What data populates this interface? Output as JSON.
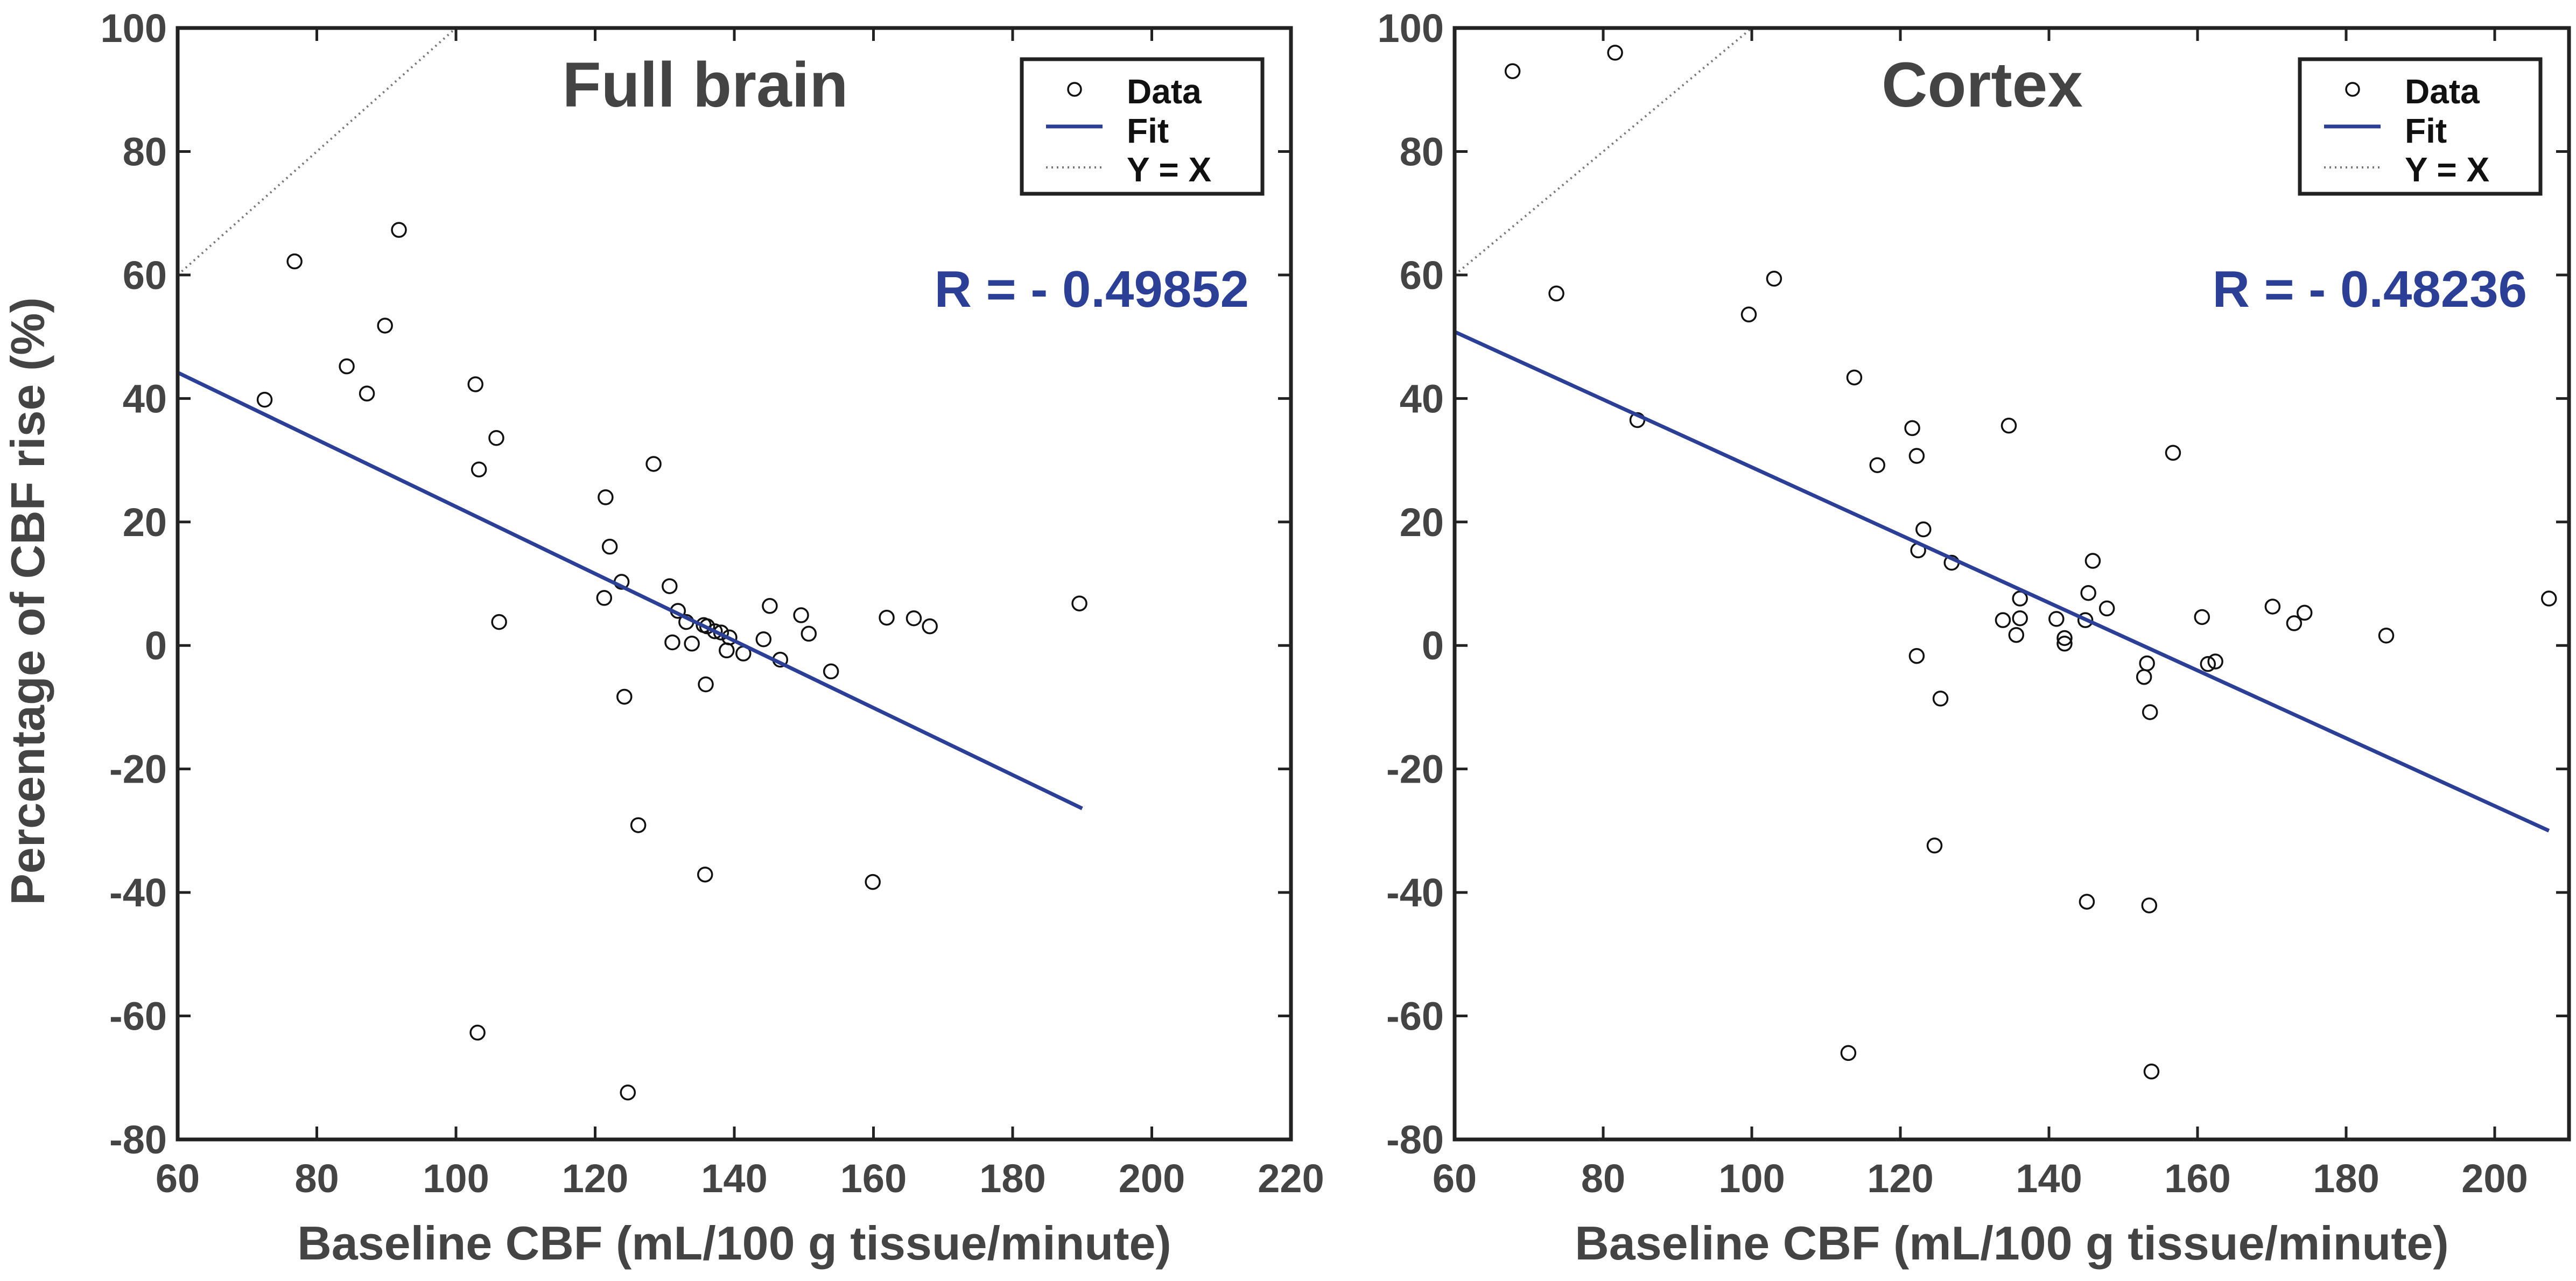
{
  "colors": {
    "fit": "#2b3f96",
    "r_text": "#2b3f96",
    "axes": "#222222",
    "text": "#444444",
    "marker": "#111111",
    "identity": "#777777"
  },
  "figure": {
    "ylabel": "Percentage of CBF rise (%)"
  },
  "chart_data": [
    {
      "type": "scatter",
      "title": "Full brain",
      "xlabel": "Baseline CBF (mL/100 g tissue/minute)",
      "ylabel": "Percentage of CBF rise (%)",
      "xlim": [
        60,
        220
      ],
      "ylim": [
        -80,
        100
      ],
      "xticks": [
        60,
        80,
        100,
        120,
        140,
        160,
        180,
        200,
        220
      ],
      "yticks": [
        -80,
        -60,
        -40,
        -20,
        0,
        20,
        40,
        60,
        80,
        100
      ],
      "r_label": "R = - 0.49852",
      "legend": {
        "position": "top-right",
        "entries": [
          "Data",
          "Fit",
          "Y = X"
        ]
      },
      "series": [
        {
          "name": "Data",
          "kind": "markers",
          "points": [
            [
              72.5,
              39.8
            ],
            [
              76.8,
              62.2
            ],
            [
              84.3,
              45.2
            ],
            [
              87.2,
              40.8
            ],
            [
              89.8,
              51.8
            ],
            [
              91.8,
              67.3
            ],
            [
              102.8,
              42.3
            ],
            [
              103.3,
              28.5
            ],
            [
              103.1,
              -62.7
            ],
            [
              105.8,
              33.6
            ],
            [
              106.2,
              3.8
            ],
            [
              121.3,
              7.7
            ],
            [
              121.5,
              24
            ],
            [
              122.1,
              16
            ],
            [
              123.8,
              10.3
            ],
            [
              124.2,
              -8.3
            ],
            [
              124.7,
              -72.4
            ],
            [
              126.2,
              -29.1
            ],
            [
              128.4,
              29.4
            ],
            [
              130.7,
              9.6
            ],
            [
              131.1,
              0.5
            ],
            [
              131.9,
              5.6
            ],
            [
              133.1,
              3.8
            ],
            [
              133.9,
              0.3
            ],
            [
              135.6,
              3.3
            ],
            [
              136.1,
              3.1
            ],
            [
              135.9,
              -6.3
            ],
            [
              135.8,
              -37.1
            ],
            [
              137.2,
              2.3
            ],
            [
              138.1,
              2.1
            ],
            [
              138.9,
              -0.8
            ],
            [
              139.3,
              1.3
            ],
            [
              141.3,
              -1.3
            ],
            [
              144.2,
              1.0
            ],
            [
              145.1,
              6.4
            ],
            [
              146.6,
              -2.3
            ],
            [
              149.6,
              4.9
            ],
            [
              150.7,
              1.9
            ],
            [
              153.9,
              -4.2
            ],
            [
              159.9,
              -38.3
            ],
            [
              161.9,
              4.5
            ],
            [
              165.8,
              4.4
            ],
            [
              168.1,
              3.1
            ],
            [
              189.6,
              6.8
            ]
          ]
        },
        {
          "name": "Fit",
          "kind": "line",
          "x": [
            60,
            190
          ],
          "y": [
            44.2,
            -26.4
          ]
        },
        {
          "name": "Y = X",
          "kind": "dotted-line",
          "x": [
            60,
            100
          ],
          "y": [
            60,
            100
          ]
        }
      ]
    },
    {
      "type": "scatter",
      "title": "Cortex",
      "xlabel": "Baseline CBF (mL/100 g tissue/minute)",
      "ylabel": "",
      "xlim": [
        60,
        210
      ],
      "ylim": [
        -80,
        100
      ],
      "xticks": [
        60,
        80,
        100,
        120,
        140,
        160,
        180,
        200
      ],
      "yticks": [
        -80,
        -60,
        -40,
        -20,
        0,
        20,
        40,
        60,
        80,
        100
      ],
      "r_label": "R = - 0.48236",
      "legend": {
        "position": "top-right",
        "entries": [
          "Data",
          "Fit",
          "Y = X"
        ]
      },
      "series": [
        {
          "name": "Data",
          "kind": "markers",
          "points": [
            [
              67.8,
              93
            ],
            [
              73.7,
              57
            ],
            [
              81.6,
              96
            ],
            [
              84.6,
              36.5
            ],
            [
              99.6,
              53.6
            ],
            [
              103,
              59.4
            ],
            [
              113,
              -66
            ],
            [
              113.8,
              43.4
            ],
            [
              116.9,
              29.2
            ],
            [
              121.6,
              35.2
            ],
            [
              122.2,
              30.7
            ],
            [
              122.4,
              15.4
            ],
            [
              122.2,
              -1.7
            ],
            [
              123.1,
              18.8
            ],
            [
              124.6,
              -32.4
            ],
            [
              125.4,
              -8.6
            ],
            [
              126.9,
              13.4
            ],
            [
              133.8,
              4.1
            ],
            [
              134.6,
              35.6
            ],
            [
              135.6,
              1.7
            ],
            [
              136.1,
              7.6
            ],
            [
              136.1,
              4.4
            ],
            [
              141,
              4.3
            ],
            [
              142.1,
              1.2
            ],
            [
              142.1,
              0.3
            ],
            [
              144.9,
              4.1
            ],
            [
              145.1,
              -41.5
            ],
            [
              145.3,
              8.5
            ],
            [
              145.9,
              13.7
            ],
            [
              147.8,
              6.0
            ],
            [
              152.8,
              -5.1
            ],
            [
              153.2,
              -2.9
            ],
            [
              153.6,
              -10.8
            ],
            [
              153.5,
              -42.1
            ],
            [
              153.8,
              -69
            ],
            [
              156.7,
              31.2
            ],
            [
              160.6,
              4.6
            ],
            [
              161.4,
              -3.0
            ],
            [
              162.4,
              -2.6
            ],
            [
              170.1,
              6.3
            ],
            [
              173,
              3.6
            ],
            [
              174.4,
              5.3
            ],
            [
              185.4,
              1.6
            ],
            [
              207.3,
              7.6
            ]
          ]
        },
        {
          "name": "Fit",
          "kind": "line",
          "x": [
            60,
            207.3
          ],
          "y": [
            50.8,
            -30.0
          ]
        },
        {
          "name": "Y = X",
          "kind": "dotted-line",
          "x": [
            60,
            100
          ],
          "y": [
            60,
            100
          ]
        }
      ]
    }
  ]
}
